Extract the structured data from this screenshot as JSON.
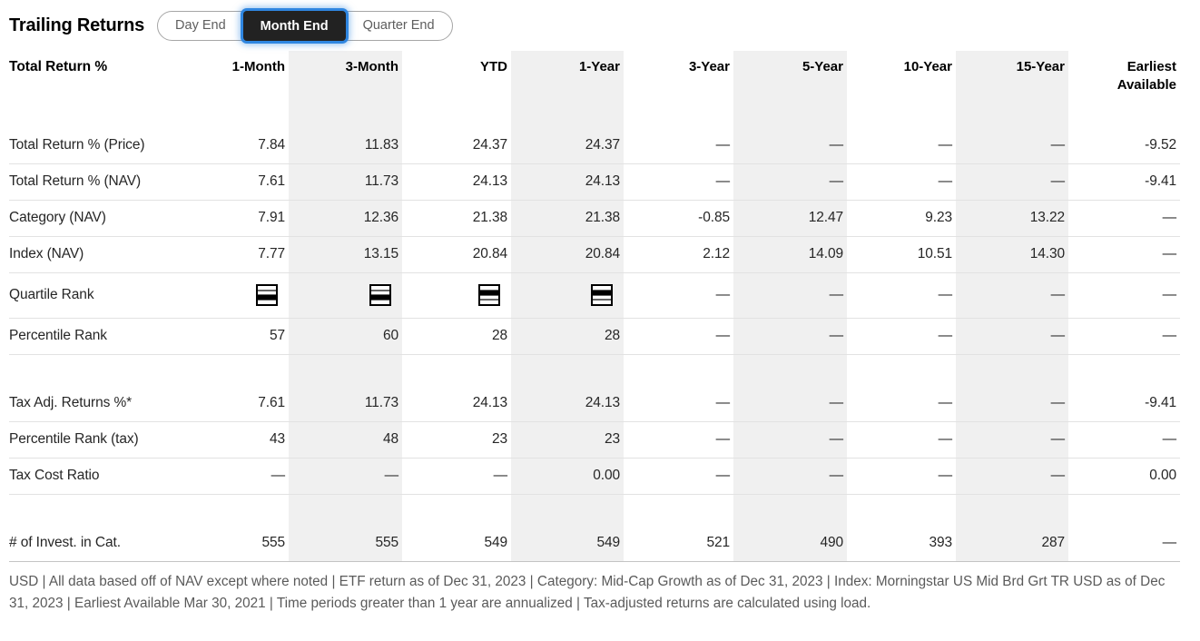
{
  "header": {
    "title": "Trailing Returns",
    "tabs": [
      {
        "label": "Day End",
        "selected": false
      },
      {
        "label": "Month End",
        "selected": true
      },
      {
        "label": "Quarter End",
        "selected": false
      }
    ]
  },
  "table": {
    "label_header": "Total Return %",
    "columns": [
      "1-Month",
      "3-Month",
      "YTD",
      "1-Year",
      "3-Year",
      "5-Year",
      "10-Year",
      "15-Year",
      "Earliest Available"
    ],
    "striped_columns": [
      "3-Month",
      "1-Year",
      "5-Year",
      "15-Year"
    ],
    "quartile_icon_legend": "Q1=top band filled, Q4=bottom band filled",
    "rows": [
      {
        "label": "Total Return % (Price)",
        "values": [
          "7.84",
          "11.83",
          "24.37",
          "24.37",
          "—",
          "—",
          "—",
          "—",
          "-9.52"
        ]
      },
      {
        "label": "Total Return % (NAV)",
        "values": [
          "7.61",
          "11.73",
          "24.13",
          "24.13",
          "—",
          "—",
          "—",
          "—",
          "-9.41"
        ]
      },
      {
        "label": "Category (NAV)",
        "values": [
          "7.91",
          "12.36",
          "21.38",
          "21.38",
          "-0.85",
          "12.47",
          "9.23",
          "13.22",
          "—"
        ]
      },
      {
        "label": "Index (NAV)",
        "values": [
          "7.77",
          "13.15",
          "20.84",
          "20.84",
          "2.12",
          "14.09",
          "10.51",
          "14.30",
          "—"
        ]
      },
      {
        "label": "Quartile Rank",
        "type": "quartile",
        "values": [
          "Q3",
          "Q3",
          "Q2",
          "Q2",
          "—",
          "—",
          "—",
          "—",
          "—"
        ]
      },
      {
        "label": "Percentile Rank",
        "values": [
          "57",
          "60",
          "28",
          "28",
          "—",
          "—",
          "—",
          "—",
          "—"
        ]
      },
      {
        "type": "spacer"
      },
      {
        "label": "Tax Adj. Returns %*",
        "values": [
          "7.61",
          "11.73",
          "24.13",
          "24.13",
          "—",
          "—",
          "—",
          "—",
          "-9.41"
        ]
      },
      {
        "label": "Percentile Rank (tax)",
        "values": [
          "43",
          "48",
          "23",
          "23",
          "—",
          "—",
          "—",
          "—",
          "—"
        ]
      },
      {
        "label": "Tax Cost Ratio",
        "values": [
          "—",
          "—",
          "—",
          "0.00",
          "—",
          "—",
          "—",
          "—",
          "0.00"
        ]
      },
      {
        "type": "spacer"
      },
      {
        "label": "# of Invest. in Cat.",
        "values": [
          "555",
          "555",
          "549",
          "549",
          "521",
          "490",
          "393",
          "287",
          "—"
        ]
      }
    ]
  },
  "footer": {
    "text": "USD | All data based off of NAV except where noted | ETF return as of Dec 31, 2023 |  Category: Mid-Cap Growth as of Dec 31, 2023 |  Index: Morningstar US Mid Brd Grt TR USD as of Dec 31, 2023 |  Earliest Available Mar 30, 2021 |  Time periods greater than 1 year are annualized  | Tax-adjusted returns are calculated using load."
  },
  "colors": {
    "accent": "#2f86e0",
    "tab-bg": "#222222",
    "stripe": "#f0f0f0",
    "row-line": "#e2e2e2"
  }
}
